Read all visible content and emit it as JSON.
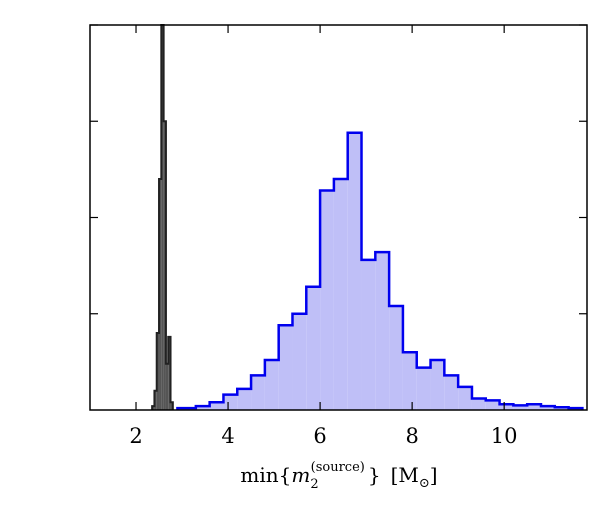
{
  "chart_data": {
    "type": "histogram",
    "xlabel": {
      "prefix": "min{",
      "var": "m",
      "subscript": "2",
      "superscript": "(source)",
      "suffix": "}",
      "unit": "[M",
      "unit_sub": "⊙",
      "unit_close": "]"
    },
    "xlim": [
      1,
      11.8
    ],
    "ylim": [
      0,
      1.0
    ],
    "x_ticks": [
      2,
      4,
      6,
      8,
      10
    ],
    "x_tick_labels": [
      "2",
      "4",
      "6",
      "8",
      "10"
    ],
    "y_ticks": [
      0.25,
      0.5,
      0.75,
      1.0
    ],
    "grid": false,
    "series": [
      {
        "style": "step-filled",
        "color": "#0000ee",
        "fill": "#bfbff7",
        "edges": [
          2.9,
          3.3,
          3.6,
          3.9,
          4.2,
          4.5,
          4.8,
          5.1,
          5.4,
          5.7,
          6.0,
          6.3,
          6.6,
          6.9,
          7.2,
          7.5,
          7.8,
          8.1,
          8.4,
          8.7,
          9.0,
          9.3,
          9.6,
          9.9,
          10.2,
          10.5,
          10.8,
          11.1,
          11.4,
          11.7
        ],
        "counts": [
          0.005,
          0.01,
          0.02,
          0.04,
          0.055,
          0.09,
          0.13,
          0.22,
          0.25,
          0.32,
          0.57,
          0.6,
          0.72,
          0.39,
          0.41,
          0.27,
          0.15,
          0.11,
          0.13,
          0.09,
          0.06,
          0.03,
          0.025,
          0.015,
          0.012,
          0.015,
          0.01,
          0.007,
          0.005
        ]
      },
      {
        "style": "step-filled",
        "color": "#222222",
        "fill": "#555555",
        "edges": [
          2.35,
          2.4,
          2.45,
          2.5,
          2.55,
          2.6,
          2.65,
          2.7,
          2.75,
          2.8
        ],
        "counts": [
          0.01,
          0.05,
          0.2,
          0.6,
          1.0,
          0.75,
          0.12,
          0.19,
          0.02
        ]
      }
    ]
  }
}
